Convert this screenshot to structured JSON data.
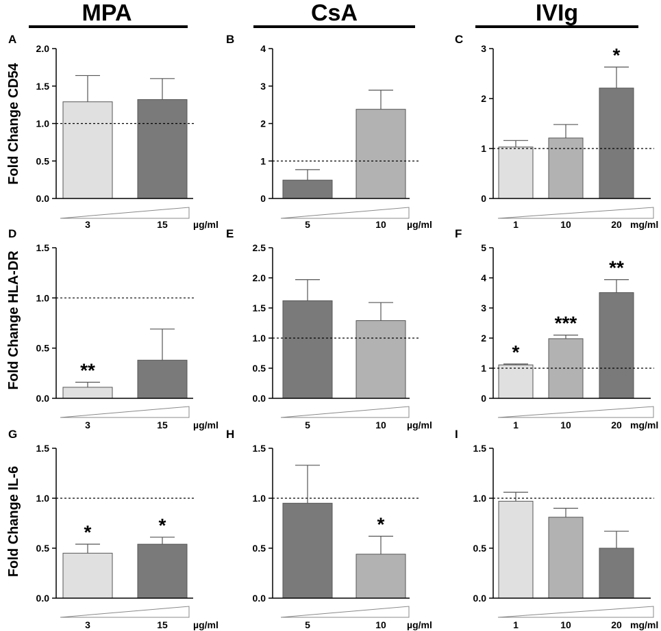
{
  "figure": {
    "columns": [
      {
        "title": "MPA"
      },
      {
        "title": "CsA"
      },
      {
        "title": "IVIg"
      }
    ],
    "row_ylabels": [
      "Fold Change CD54",
      "Fold Change HLA-DR",
      "Fold Change IL-6"
    ],
    "reference_line_value": 1.0
  },
  "colors": {
    "light": "#e0e0e0",
    "medium": "#b2b2b2",
    "dark": "#7a7a7a",
    "axis": "#000000",
    "bar_outline": "#555555"
  },
  "chart_data": [
    {
      "panel": "A",
      "type": "bar",
      "treatment": "MPA",
      "ylabel": "Fold Change CD54",
      "unit": "µg/ml",
      "categories": [
        "3",
        "15"
      ],
      "values": [
        1.29,
        1.32
      ],
      "errors": [
        0.35,
        0.28
      ],
      "bar_colors": [
        "light",
        "dark"
      ],
      "significance": [
        "",
        ""
      ],
      "ylim": [
        0,
        2.0
      ],
      "yticks": [
        "0.0",
        "0.5",
        "1.0",
        "1.5",
        "2.0"
      ],
      "reference": 1.0
    },
    {
      "panel": "B",
      "type": "bar",
      "treatment": "CsA",
      "ylabel": "Fold Change CD54",
      "unit": "µg/ml",
      "categories": [
        "5",
        "10"
      ],
      "values": [
        0.49,
        2.38
      ],
      "errors": [
        0.28,
        0.51
      ],
      "bar_colors": [
        "dark",
        "medium"
      ],
      "significance": [
        "",
        ""
      ],
      "ylim": [
        0,
        4
      ],
      "yticks": [
        "0",
        "1",
        "2",
        "3",
        "4"
      ],
      "reference": 1.0
    },
    {
      "panel": "C",
      "type": "bar",
      "treatment": "IVIg",
      "ylabel": "Fold Change CD54",
      "unit": "mg/ml",
      "categories": [
        "1",
        "10",
        "20"
      ],
      "values": [
        1.03,
        1.21,
        2.21
      ],
      "errors": [
        0.13,
        0.27,
        0.42
      ],
      "bar_colors": [
        "light",
        "medium",
        "dark"
      ],
      "significance": [
        "",
        "",
        "*"
      ],
      "ylim": [
        0,
        3
      ],
      "yticks": [
        "0",
        "1",
        "2",
        "3"
      ],
      "reference": 1.0
    },
    {
      "panel": "D",
      "type": "bar",
      "treatment": "MPA",
      "ylabel": "Fold Change HLA-DR",
      "unit": "µg/ml",
      "categories": [
        "3",
        "15"
      ],
      "values": [
        0.11,
        0.38
      ],
      "errors": [
        0.05,
        0.31
      ],
      "bar_colors": [
        "light",
        "dark"
      ],
      "significance": [
        "**",
        ""
      ],
      "ylim": [
        0,
        1.5
      ],
      "yticks": [
        "0.0",
        "0.5",
        "1.0",
        "1.5"
      ],
      "reference": 1.0
    },
    {
      "panel": "E",
      "type": "bar",
      "treatment": "CsA",
      "ylabel": "Fold Change HLA-DR",
      "unit": "µg/ml",
      "categories": [
        "5",
        "10"
      ],
      "values": [
        1.62,
        1.29
      ],
      "errors": [
        0.35,
        0.3
      ],
      "bar_colors": [
        "dark",
        "medium"
      ],
      "significance": [
        "",
        ""
      ],
      "ylim": [
        0,
        2.5
      ],
      "yticks": [
        "0.0",
        "0.5",
        "1.0",
        "1.5",
        "2.0",
        "2.5"
      ],
      "reference": 1.0
    },
    {
      "panel": "F",
      "type": "bar",
      "treatment": "IVIg",
      "ylabel": "Fold Change HLA-DR",
      "unit": "mg/ml",
      "categories": [
        "1",
        "10",
        "20"
      ],
      "values": [
        1.11,
        1.98,
        3.51
      ],
      "errors": [
        0.03,
        0.12,
        0.43
      ],
      "bar_colors": [
        "light",
        "medium",
        "dark"
      ],
      "significance": [
        "*",
        "***",
        "**"
      ],
      "ylim": [
        0,
        5
      ],
      "yticks": [
        "0",
        "1",
        "2",
        "3",
        "4",
        "5"
      ],
      "reference": 1.0
    },
    {
      "panel": "G",
      "type": "bar",
      "treatment": "MPA",
      "ylabel": "Fold Change IL-6",
      "unit": "µg/ml",
      "categories": [
        "3",
        "15"
      ],
      "values": [
        0.45,
        0.54
      ],
      "errors": [
        0.09,
        0.07
      ],
      "bar_colors": [
        "light",
        "dark"
      ],
      "significance": [
        "*",
        "*"
      ],
      "ylim": [
        0,
        1.5
      ],
      "yticks": [
        "0.0",
        "0.5",
        "1.0",
        "1.5"
      ],
      "reference": 1.0
    },
    {
      "panel": "H",
      "type": "bar",
      "treatment": "CsA",
      "ylabel": "Fold Change IL-6",
      "unit": "µg/ml",
      "categories": [
        "5",
        "10"
      ],
      "values": [
        0.95,
        0.44
      ],
      "errors": [
        0.38,
        0.18
      ],
      "bar_colors": [
        "dark",
        "medium"
      ],
      "significance": [
        "",
        "*"
      ],
      "ylim": [
        0,
        1.5
      ],
      "yticks": [
        "0.0",
        "0.5",
        "1.0",
        "1.5"
      ],
      "reference": 1.0
    },
    {
      "panel": "I",
      "type": "bar",
      "treatment": "IVIg",
      "ylabel": "Fold Change IL-6",
      "unit": "mg/ml",
      "categories": [
        "1",
        "10",
        "20"
      ],
      "values": [
        0.97,
        0.81,
        0.5
      ],
      "errors": [
        0.09,
        0.09,
        0.17
      ],
      "bar_colors": [
        "light",
        "medium",
        "dark"
      ],
      "significance": [
        "",
        "",
        ""
      ],
      "ylim": [
        0,
        1.5
      ],
      "yticks": [
        "0.0",
        "0.5",
        "1.0",
        "1.5"
      ],
      "reference": 1.0
    }
  ]
}
